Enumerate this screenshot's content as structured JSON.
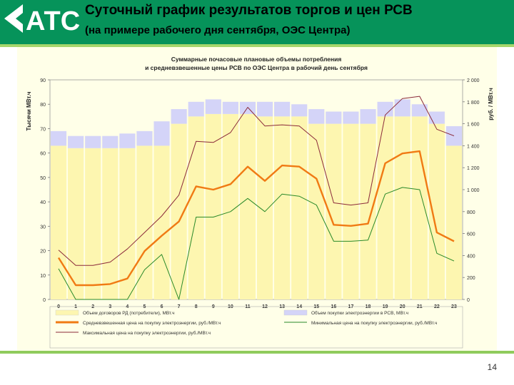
{
  "slide": {
    "title": "Суточный график результатов торгов и цен РСВ",
    "subtitle": "(на примере рабочего дня сентября, ОЭС Центра)",
    "logo_text": "АТС",
    "page_number": "14"
  },
  "colors": {
    "header_bg": "#06935a",
    "header_accent": "#a5d66b",
    "chart_bg": "#ffffe8",
    "bar_bilateral": "#fdf6b0",
    "bar_rsv": "#d4d4f8",
    "avg_price": "#f07a14",
    "min_price": "#2a8a2a",
    "max_price": "#8b2a3a"
  },
  "chart_data": {
    "type": "bar",
    "title_line1": "Суммарные почасовые плановые объемы потребления",
    "title_line2": "и средневзвешенные цены РСВ по ОЭС Центра в рабочий день сентября",
    "ylabel_left": "Тысячи МВт.ч",
    "ylabel_right": "руб. / МВт.ч",
    "ylim_left": [
      0,
      90
    ],
    "ylim_right": [
      0,
      2000
    ],
    "yticks_left": [
      "0",
      "10",
      "20",
      "30",
      "40",
      "50",
      "60",
      "70",
      "80",
      "90"
    ],
    "yticks_right": [
      "0",
      "200",
      "400",
      "600",
      "800",
      "1 000",
      "1 200",
      "1 400",
      "1 600",
      "1 800",
      "2 000"
    ],
    "grid": false,
    "legend_position": "bottom",
    "categories": [
      "0",
      "1",
      "2",
      "3",
      "4",
      "5",
      "6",
      "7",
      "8",
      "9",
      "10",
      "11",
      "12",
      "13",
      "14",
      "15",
      "16",
      "17",
      "18",
      "19",
      "20",
      "21",
      "22",
      "23"
    ],
    "series": [
      {
        "name": "Объем договоров РД (потребители), МВт.ч",
        "kind": "stacked-bar",
        "axis": "left",
        "values": [
          63,
          62,
          62,
          62,
          62,
          63,
          63,
          72,
          75,
          76,
          76,
          76,
          75,
          75,
          75,
          72,
          72,
          72,
          72,
          75,
          75,
          75,
          72,
          63
        ]
      },
      {
        "name": "Объем покупки электроэнергии в РСВ, МВт.ч",
        "kind": "stacked-bar",
        "axis": "left",
        "values": [
          6,
          5,
          5,
          5,
          6,
          6,
          10,
          6,
          6,
          6,
          5,
          5,
          6,
          6,
          5,
          6,
          5,
          5,
          6,
          6,
          7,
          5,
          5,
          8
        ]
      },
      {
        "name": "Средневзвешенная цена на покупку электроэнергии, руб./МВт.ч",
        "kind": "line",
        "axis": "right",
        "values": [
          380,
          130,
          130,
          140,
          190,
          440,
          580,
          710,
          1030,
          1000,
          1050,
          1210,
          1080,
          1220,
          1210,
          1100,
          680,
          670,
          690,
          1240,
          1330,
          1350,
          610,
          530
        ]
      },
      {
        "name": "Минимальная цена на покупку электроэнергии, руб./МВт.ч",
        "kind": "line",
        "axis": "right",
        "values": [
          280,
          0,
          0,
          0,
          0,
          270,
          410,
          0,
          750,
          750,
          800,
          920,
          800,
          960,
          940,
          860,
          530,
          530,
          540,
          960,
          1020,
          1000,
          420,
          350
        ]
      },
      {
        "name": "Максимальная цена на покупку электроэнергии, руб./МВт.ч",
        "kind": "line",
        "axis": "right",
        "values": [
          450,
          310,
          310,
          340,
          460,
          610,
          760,
          950,
          1440,
          1430,
          1520,
          1750,
          1580,
          1590,
          1580,
          1450,
          880,
          860,
          880,
          1680,
          1830,
          1850,
          1550,
          1490
        ]
      }
    ]
  }
}
